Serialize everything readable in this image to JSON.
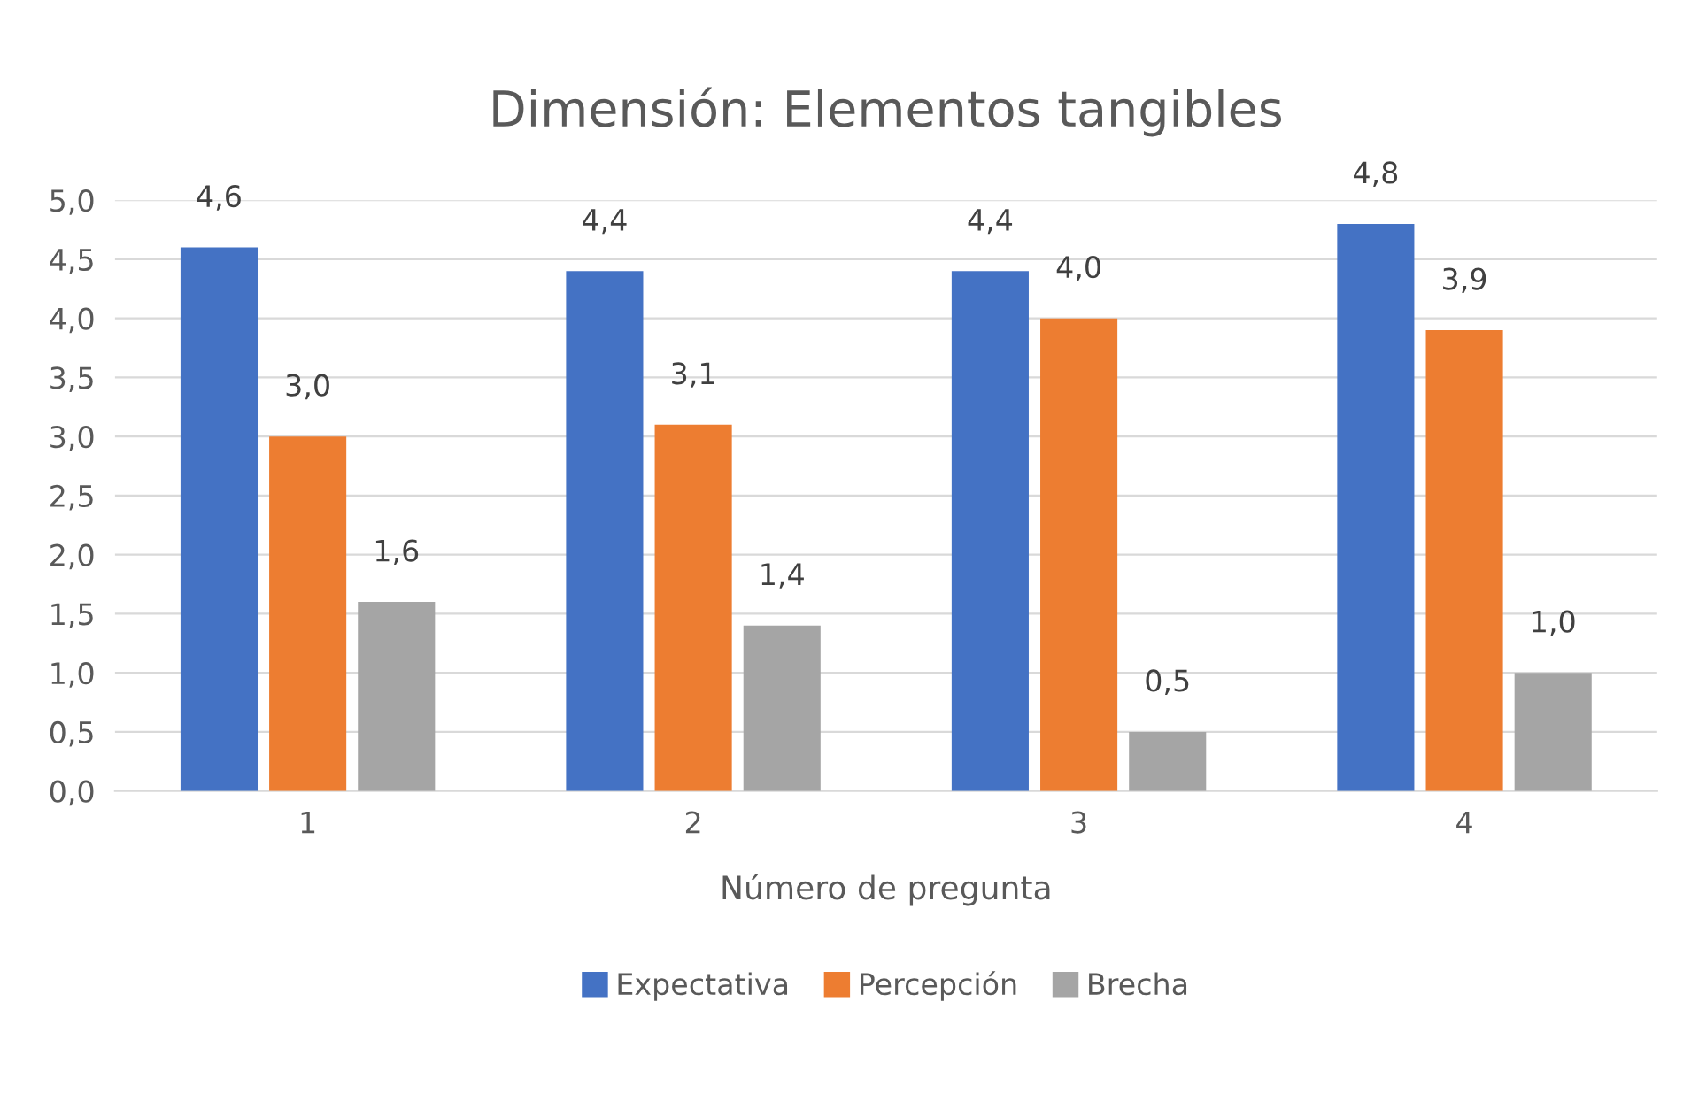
{
  "chart_data": {
    "type": "bar",
    "title": "Dimensión: Elementos tangibles",
    "xlabel": "Número de pregunta",
    "categories": [
      "1",
      "2",
      "3",
      "4"
    ],
    "series": [
      {
        "name": "Expectativa",
        "color": "#4472c4",
        "values": [
          4.6,
          4.4,
          4.4,
          4.8
        ],
        "value_labels": [
          "4,6",
          "4,4",
          "4,4",
          "4,8"
        ]
      },
      {
        "name": "Percepción",
        "color": "#ed7d31",
        "values": [
          3.0,
          3.1,
          4.0,
          3.9
        ],
        "value_labels": [
          "3,0",
          "3,1",
          "4,0",
          "3,9"
        ]
      },
      {
        "name": "Brecha",
        "color": "#a5a5a5",
        "values": [
          1.6,
          1.4,
          0.5,
          1.0
        ],
        "value_labels": [
          "1,6",
          "1,4",
          "0,5",
          "1,0"
        ]
      }
    ],
    "ylim": [
      0,
      5
    ],
    "yticks": [
      {
        "value": 0,
        "label": "0,0"
      },
      {
        "value": 0.5,
        "label": "0,5"
      },
      {
        "value": 1,
        "label": "1,0"
      },
      {
        "value": 1.5,
        "label": "1,5"
      },
      {
        "value": 2,
        "label": "2,0"
      },
      {
        "value": 2.5,
        "label": "2,5"
      },
      {
        "value": 3,
        "label": "3,0"
      },
      {
        "value": 3.5,
        "label": "3,5"
      },
      {
        "value": 4,
        "label": "4,0"
      },
      {
        "value": 4.5,
        "label": "4,5"
      },
      {
        "value": 5,
        "label": "5,0"
      }
    ],
    "grid": "y",
    "legend": "bottom"
  }
}
